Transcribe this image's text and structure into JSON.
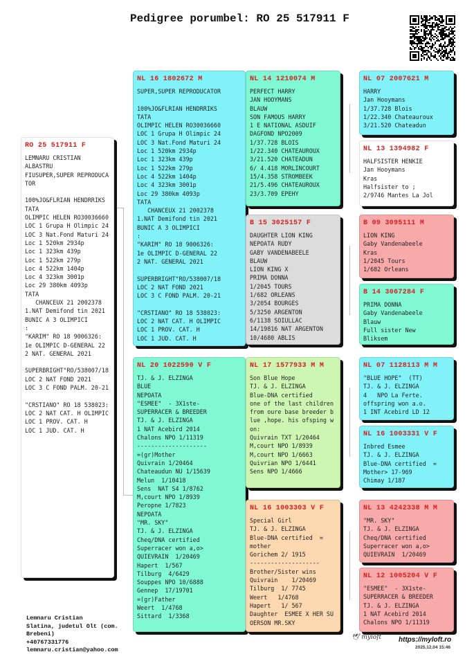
{
  "title": "Pedigree porumbel: RO 25 517911 F",
  "colors": {
    "cyan": "#80f2f8",
    "aqua": "#80f8d4",
    "gray": "#dcdcdc",
    "green": "#ccf6b2",
    "peach": "#fcd8b0",
    "pink": "#f8aaaa",
    "white": "#ffffff",
    "ring": "#d42020"
  },
  "subject": {
    "ring": "RO 25 517911 F",
    "text": "LEMNARU CRISTIAN\nALBASTRU\nFIUSUPER,SUPER REPRODUCA\nTOR\n\n100%JO&FLRIAN HENDRRIKS\nTATA\nOLIMPIC HELEN RO30036660\nLOC 1 Grupa H Olimpic 24\nLOC 3 Nat.Fond Maturi 24\nLoc 1 520km 2934p\nLoc 1 323km 439p\nLoc 1 522km 279p\nLoc 4 522km 1404p\nLoc 4 323km 3001p\nLoc 29 380km 4093p\nTATA\n   CHANCEUX 21 2002378\n1.NAT Demifond tin 2021\nBUNIC A 3 OLIMPICI\n:\n\"KARIM\" RO 18 9006326:\n1e OLIMPIC D-GENERAL 22\n2 NAT. GENERAL 2021\n\nSUPERBRIGHT\"RO/538007/18\nLOC 2 NAT FOND 2021\nLOC 3 C FOND PALM. 20-21\n\n\"CRSTIANO\" RO 18 538023:\nLOC 2 NAT CAT. H OLIMPIC\nLOC 1 PROV. CAT. H\nLOC 1 JUD. CAT. H"
  },
  "sire": {
    "ring": "NL 16 1802672 M",
    "text": "SUPER,SUPER REPRODUCATOR\n\n100%JO&FLRIAN HENDRRIKS\nTATA\nOLIMPIC HELEN RO30036660\nLOC 1 Grupa H Olimpic 24\nLOC 3 Nat.Fond Maturi 24\nLoc 1 520km 2934p\nLoc 1 323km 439p\nLoc 1 522km 279p\nLoc 4 522km 1404p\nLoc 4 323km 3001p\nLoc 29 380km 4093p\nTATA\n   CHANCEUX 21 2002378\n1.NAT Demifond tin 2021\nBUNIC A 3 OLIMPICI\n:\n\"KARIM\" RO 18 9006326:\n1e OLIMPIC D-GENERAL 22\n2 NAT. GENERAL 2021\n\nSUPERBRIGHT\"RO/538007/18\nLOC 2 NAT FOND 2021\nLOC 3 C FOND PALM. 20-21\n\n\"CRSTIANO\" RO 18 538023:\nLOC 2 NAT CAT. H OLIMPIC\nLOC 1 PROV. CAT. H\nLOC 1 JUD. CAT. H"
  },
  "dam": {
    "ring": "NL 20 1022590 V F",
    "text": "TJ. & J. ELZINGA\nBLUE\nNEPOATA\n\"ESMEE\"  - 3X1ste-\nSUPERRACER & BREEDER\nTJ. & J. ELZINGA\n1 NAT Acebird 2014\nChalons NPO 1/11319\n--------------------\n=(gr)Mother\nQuivrain 1/20464\nChateaudun NU 1/15639\nMelun  1/10418\nSens  NAT S4 1/8762\nM,court NPO 1/8939\nPeropne 1/7823\nNEPOATA\n\"MR. SKY\"\nTJ. & J. ELZINGA\nCheq/DNA certified\nSuperracer won a,o>\nQUIEVRAIN  1/20469\nHapert  1/567\nTilburg  4/6429\nSouppes NPO 10/6888\nGennep  17/19701\n=(gr)Father\nWeert  1/4768\nSittard  1/3368"
  },
  "grandparents": [
    {
      "ring": "NL 14 1210074 M",
      "text": "PERFECT HARRY\nJAN HOOYMANS\nBLAUW\nSON FAMOUS HARRY\n1 E NATIONAL ASDUIF\nDAGFOND NPO2009\n1/37.728 BLOIS\n1/22.340 CHATEAUROUX\n3/21.520 CHATEADUN\n6/ 4.418 MORLINCOURT\n15/4.358 STROMBEEK\n21/5.496 CHATEAUROUX\n23/3.709 EPEHY",
      "color": "aqua"
    },
    {
      "ring": "B 15 3025157 F",
      "text": "DAUGHTER LION KING\nNEPOATA RUDY\nGABY VANDENABEELE\nBLAUW\nLION KING X\nPRIMA DONNA\n1/2045 TOURS\n1/682 ORLEANS\n3/2054 BOURGES\n5/3250 ARGENTON\n6/1138 SOIULLAC\n14/19816 NAT ARGENTON\n10/4680 ABLIS",
      "color": "gray"
    },
    {
      "ring": "NL 17 1577933 M M",
      "text": "Son Blue Hope\nTJ. & J. ELZINGA\nBlue-DNA certified\none of the last children\nfrom oure base breeder b\nlue ,hope. his ofsping w\non:\nQuivrain TXT 1/20464\nM,court NPO 1/8939\nM,court NPO 1/6663\nQuivrian NPO 1/6441\nSens NPO 1/4666",
      "color": "green"
    },
    {
      "ring": "NL 16 1003303 V F",
      "text": "Special Girl\nTJ. & J. ELZINGA\nBlue-DNA certified  =\nmother\nGorichem 2/ 1915\n--------------------\nBrother/Sister wins\nQuivrain    1/20469\nTilburg  1/ 7745\nWeert   1/4768\nHapert   1/ 567\nDaughter  ESMEE X HER SU\nOERSON MR.SKY",
      "color": "peach"
    }
  ],
  "great_grandparents": [
    {
      "ring": "NL 07 2007621 M",
      "text": "HARRY\nJan Hooymans\n1/37.728 Blois\n1/22.340 Chateauroux\n3/21.520 Chateadun",
      "color": "cyan"
    },
    {
      "ring": "NL 13 1394982 F",
      "text": "HALFSISTER HENKIE\nJan Hooymans\nKras\nHalfsister to ;\n2/9746 Mantes La Jol",
      "color": "white"
    },
    {
      "ring": "B 09 3095111 M",
      "text": "LION KING\nGaby Vandenabeele\nKras\n1/2045 Tours\n1/682 Orleans",
      "color": "pink"
    },
    {
      "ring": "B 14 3067284 F",
      "text": "PRIMA DONNA\nGaby Vandenabeele\nBlauw\nFull sister New\nBliksem",
      "color": "aqua"
    },
    {
      "ring": "NL 07 1128113 M M",
      "text": "\"BLUE HOPE\"  (TT)\nTJ. & J. ELZINGA\n4   NPO La Ferte.\noffspring won a.o.\n1 INT Acebird LD 12",
      "color": "cyan"
    },
    {
      "ring": "NL 16 1003331 V F",
      "text": "Inbred Esmee\nTJ. & J. ELZINGA\nBlue-DNA certified  =\nMother> 17-969\nChimay 1/187",
      "color": "cyan"
    },
    {
      "ring": "NL 13 4242338 M M",
      "text": "\"MR. SKY\"\nTJ. & J. ELZINGA\nCheq/DNA certified\nSuperracer won a,o>\nQUIEVRAIN  1/20469",
      "color": "pink"
    },
    {
      "ring": "NL 12 1005204 V F",
      "text": "\"ESMEE\"  - 3X1ste-\nSUPERRACER & BREEDER\nTJ. & J. ELZINGA\n1 NAT Acebird 2014\nChalons NPO 1/11319",
      "color": "pink"
    }
  ],
  "owner": {
    "name": "Lemnaru Cristian",
    "address": "Slatina, judetul Olt (com.\nBrebeni)",
    "phone": "+40767331776",
    "email": "lemnaru.cristian@yahoo.com"
  },
  "footer": {
    "logo": "myloft",
    "site": "https://myloft.ro",
    "date": "2025.12.04 15:46"
  }
}
